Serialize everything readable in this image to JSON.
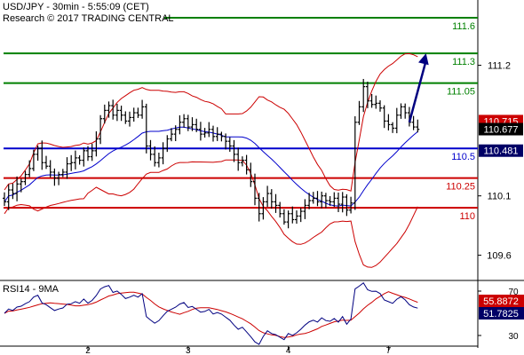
{
  "header": {
    "line1": "USD/JPY - 30min - 5:55:09 (CET)",
    "line2": "Research © 2017 TRADING CENTRAL"
  },
  "rsi_title": "RSI14 - 9MA",
  "colors": {
    "background": "#ffffff",
    "price": "#000000",
    "bollinger": "#cc0000",
    "moving_average": "#0000cc",
    "pivot_line": "#0000cc",
    "support_line": "#cc0000",
    "resistance_line": "#008000",
    "arrow": "#000080",
    "rsi": "#000080",
    "rsi_ma": "#cc0000",
    "last_price_tag": "#000000",
    "ma_value_tag": "#000066",
    "bollinger_value_tag": "#cc0000"
  },
  "chart_data": [
    {
      "type": "candlestick",
      "symbol": "USD/JPY",
      "timeframe": "30min",
      "ylim": [
        109.41,
        111.69
      ],
      "x_ticks": [
        {
          "label": "2",
          "index": 20
        },
        {
          "label": "3",
          "index": 44
        },
        {
          "label": "4",
          "index": 68
        },
        {
          "label": "7",
          "index": 92
        }
      ],
      "y_ticks": [
        111.2,
        110.1,
        109.6
      ],
      "horizontal_levels": [
        {
          "value": 111.6,
          "label": "111.6",
          "role": "resistance"
        },
        {
          "value": 111.3,
          "label": "111.3",
          "role": "resistance"
        },
        {
          "value": 111.05,
          "label": "111.05",
          "role": "resistance"
        },
        {
          "value": 110.5,
          "label": "110.5",
          "role": "pivot"
        },
        {
          "value": 110.25,
          "label": "110.25",
          "role": "support"
        },
        {
          "value": 110,
          "label": "110",
          "role": "support"
        }
      ],
      "value_tags": [
        {
          "label": "110.715",
          "value": 110.715,
          "role": "bollinger_upper"
        },
        {
          "label": "110.677",
          "value": 110.677,
          "role": "last_price"
        },
        {
          "label": "110.481",
          "value": 110.481,
          "role": "moving_average"
        }
      ],
      "forecast_arrow": {
        "from_index": 97,
        "from_value": 110.72,
        "to_index": 101,
        "to_value": 111.3
      },
      "close": [
        110.05,
        110.15,
        110.12,
        110.2,
        110.22,
        110.28,
        110.33,
        110.45,
        110.5,
        110.38,
        110.35,
        110.3,
        110.25,
        110.28,
        110.3,
        110.37,
        110.38,
        110.42,
        110.4,
        110.48,
        110.43,
        110.48,
        110.58,
        110.75,
        110.82,
        110.86,
        110.78,
        110.82,
        110.78,
        110.73,
        110.76,
        110.8,
        110.78,
        110.85,
        110.52,
        110.45,
        110.38,
        110.42,
        110.5,
        110.58,
        110.62,
        110.66,
        110.72,
        110.75,
        110.68,
        110.7,
        110.66,
        110.62,
        110.63,
        110.66,
        110.6,
        110.62,
        110.6,
        110.56,
        110.52,
        110.45,
        110.38,
        110.4,
        110.32,
        110.22,
        110.08,
        109.95,
        110.05,
        110.12,
        110.05,
        110.02,
        109.95,
        109.88,
        109.95,
        109.9,
        109.93,
        109.97,
        110.02,
        110.06,
        110.08,
        110.05,
        110.1,
        110.06,
        110.05,
        110.08,
        110.03,
        110.09,
        109.98,
        110.04,
        110.72,
        110.85,
        111.02,
        110.9,
        110.87,
        110.88,
        110.84,
        110.73,
        110.7,
        110.67,
        110.78,
        110.85,
        110.8,
        110.72,
        110.68,
        110.66
      ]
    },
    {
      "type": "line",
      "name": "RSI14 - 9MA",
      "ylim": [
        22,
        78
      ],
      "y_ticks": [
        70,
        30
      ],
      "value_tags": [
        {
          "label": "55.8872",
          "value": 55.8872,
          "role": "rsi_ma"
        },
        {
          "label": "51.7825",
          "value": 51.7825,
          "role": "rsi"
        }
      ]
    }
  ]
}
